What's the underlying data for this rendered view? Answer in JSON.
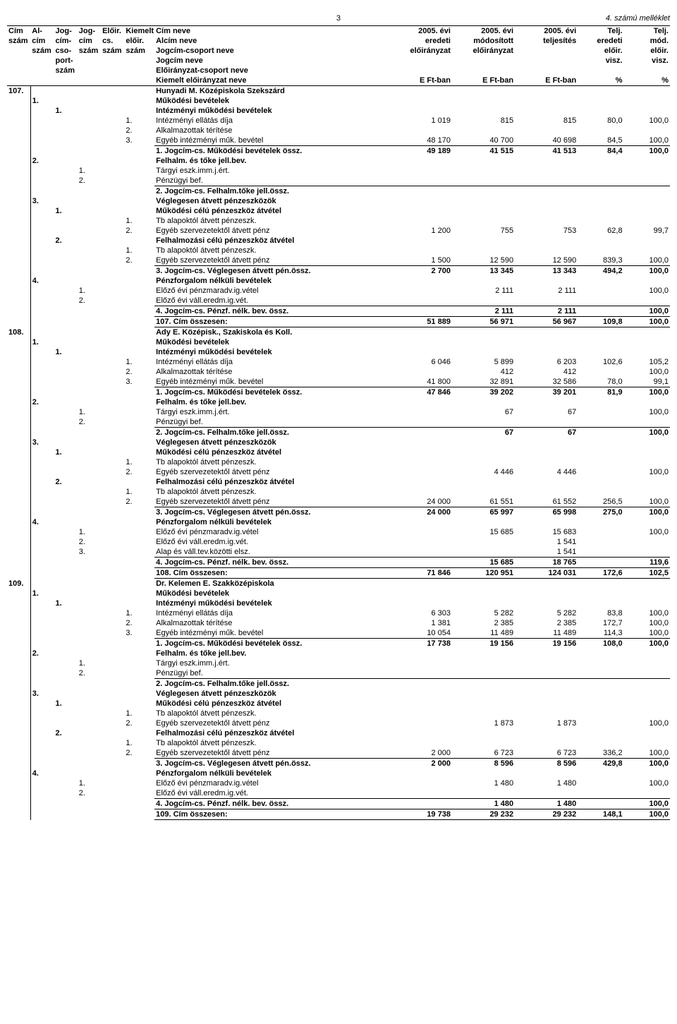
{
  "page": {
    "number": "3",
    "appendix": "4. számú melléklet"
  },
  "header": {
    "cim": "Cím szám",
    "alcim": "Al-cím szám",
    "jog": "Jog-cím-cso-port-szám",
    "jogcim": "Jog-cím szám",
    "eloir": "Előir. cs. szám",
    "kiemelt": "Kiemelt előir. szám",
    "nev1": "Cím neve",
    "nev2": "Alcím neve",
    "nev3": "Jogcím-csoport neve",
    "nev4": "Jogcím neve",
    "nev5": "Előirányzat-csoport neve",
    "nev6": "Kiemelt előirányzat neve",
    "c1a": "2005. évi",
    "c1b": "eredeti",
    "c1c": "előirányzat",
    "c2a": "2005. évi",
    "c2b": "módosított",
    "c2c": "előirányzat",
    "c3a": "2005. évi",
    "c3b": "teljesítés",
    "c4a": "Telj.",
    "c4b": "eredeti",
    "c4c": "előir.",
    "c4d": "visz.",
    "c5a": "Telj.",
    "c5b": "mód.",
    "c5c": "előir.",
    "c5d": "visz.",
    "unit": "E Ft-ban",
    "pct": "%"
  },
  "rows": [
    {
      "cim": "107.",
      "name": "Hunyadi M. Középiskola Szekszárd",
      "bold": true,
      "bt": true
    },
    {
      "alcim": "1.",
      "name": "Működési bevételek",
      "bold": true
    },
    {
      "jog": "1.",
      "name": "Intézményi működési bevételek",
      "bold": true
    },
    {
      "kiem": "1.",
      "name": "Intézményi ellátás díja",
      "v1": "1 019",
      "v2": "815",
      "v3": "815",
      "p1": "80,0",
      "p2": "100,0"
    },
    {
      "kiem": "2.",
      "name": "Alkalmazottak térítése"
    },
    {
      "kiem": "3.",
      "name": "Egyéb intézményi műk. bevétel",
      "v1": "48 170",
      "v2": "40 700",
      "v3": "40 698",
      "p1": "84,5",
      "p2": "100,0",
      "bb": true
    },
    {
      "name": "1. Jogcím-cs. Működési bevételek össz.",
      "bold": true,
      "v1": "49 189",
      "v2": "41 515",
      "v3": "41 513",
      "p1": "84,4",
      "p2": "100,0"
    },
    {
      "alcim": "2.",
      "name": "Felhalm. és tőke jell.bev.",
      "bold": true
    },
    {
      "jogcim": "1.",
      "name": "Tárgyi eszk.imm.j.ért."
    },
    {
      "jogcim": "2.",
      "name": "Pénzügyi bef.",
      "bb": true
    },
    {
      "name": "2. Jogcím-cs. Felhalm.tőke jell.össz.",
      "bold": true
    },
    {
      "alcim": "3.",
      "name": "Véglegesen átvett pénzeszközök",
      "bold": true
    },
    {
      "jog": "1.",
      "name": "Működési célú pénzeszköz átvétel",
      "bold": true
    },
    {
      "kiem": "1.",
      "name": "Tb alapoktól átvett pénzeszk."
    },
    {
      "kiem": "2.",
      "name": "Egyéb szervezetektől átvett pénz",
      "v1": "1 200",
      "v2": "755",
      "v3": "753",
      "p1": "62,8",
      "p2": "99,7"
    },
    {
      "jog": "2.",
      "name": "Felhalmozási célú  pénzeszköz átvétel",
      "bold": true
    },
    {
      "kiem": "1.",
      "name": "Tb alapoktól átvett pénzeszk."
    },
    {
      "kiem": "2.",
      "name": "Egyéb szervezetektől átvett pénz",
      "v1": "1 500",
      "v2": "12 590",
      "v3": "12 590",
      "p1": "839,3",
      "p2": "100,0",
      "bb": true
    },
    {
      "name": "3. Jogcím-cs. Véglegesen átvett pén.össz.",
      "bold": true,
      "v1": "2 700",
      "v2": "13 345",
      "v3": "13 343",
      "p1": "494,2",
      "p2": "100,0"
    },
    {
      "alcim": "4.",
      "name": "Pénzforgalom nélküli bevételek",
      "bold": true
    },
    {
      "jogcim": "1.",
      "name": "Előző évi pénzmaradv.ig.vétel",
      "v2": "2 111",
      "v3": "2 111",
      "p2": "100,0"
    },
    {
      "jogcim": "2.",
      "name": "Előző évi váll.eredm.ig.vét.",
      "bb": true
    },
    {
      "name": "4. Jogcím-cs. Pénzf. nélk. bev. össz.",
      "bold": true,
      "v2": "2 111",
      "v3": "2 111",
      "p2": "100,0",
      "bb": true
    },
    {
      "name": "107. Cím összesen:",
      "bold": true,
      "v1": "51 889",
      "v2": "56 971",
      "v3": "56 967",
      "p1": "109,8",
      "p2": "100,0",
      "bb": true
    },
    {
      "cim": "108.",
      "name": "Ady E. Középisk., Szakiskola és Koll.",
      "bold": true
    },
    {
      "alcim": "1.",
      "name": "Működési bevételek",
      "bold": true
    },
    {
      "jog": "1.",
      "name": "Intézményi működési bevételek",
      "bold": true
    },
    {
      "kiem": "1.",
      "name": "Intézményi ellátás díja",
      "v1": "6 046",
      "v2": "5 899",
      "v3": "6 203",
      "p1": "102,6",
      "p2": "105,2"
    },
    {
      "kiem": "2.",
      "name": "Alkalmazottak térítése",
      "v2": "412",
      "v3": "412",
      "p2": "100,0"
    },
    {
      "kiem": "3.",
      "name": "Egyéb intézményi műk. bevétel",
      "v1": "41 800",
      "v2": "32 891",
      "v3": "32 586",
      "p1": "78,0",
      "p2": "99,1",
      "bb": true
    },
    {
      "name": "1. Jogcím-cs. Működési bevételek össz.",
      "bold": true,
      "v1": "47 846",
      "v2": "39 202",
      "v3": "39 201",
      "p1": "81,9",
      "p2": "100,0"
    },
    {
      "alcim": "2.",
      "name": "Felhalm. és tőke jell.bev.",
      "bold": true
    },
    {
      "jogcim": "1.",
      "name": "Tárgyi eszk.imm.j.ért.",
      "v2": "67",
      "v3": "67",
      "p2": "100,0"
    },
    {
      "jogcim": "2.",
      "name": "Pénzügyi bef.",
      "bb": true
    },
    {
      "name": "2. Jogcím-cs. Felhalm.tőke jell.össz.",
      "bold": true,
      "v2": "67",
      "v3": "67",
      "p2": "100,0"
    },
    {
      "alcim": "3.",
      "name": "Véglegesen átvett pénzeszközök",
      "bold": true
    },
    {
      "jog": "1.",
      "name": "Működési célú pénzeszköz átvétel",
      "bold": true
    },
    {
      "kiem": "1.",
      "name": "Tb alapoktól átvett pénzeszk."
    },
    {
      "kiem": "2.",
      "name": "Egyéb szervezetektől átvett pénz",
      "v2": "4 446",
      "v3": "4 446",
      "p2": "100,0"
    },
    {
      "jog": "2.",
      "name": "Felhalmozási célú  pénzeszköz átvétel",
      "bold": true
    },
    {
      "kiem": "1.",
      "name": "Tb alapoktól átvett pénzeszk."
    },
    {
      "kiem": "2.",
      "name": "Egyéb szervezetektől átvett pénz",
      "v1": "24 000",
      "v2": "61 551",
      "v3": "61 552",
      "p1": "256,5",
      "p2": "100,0",
      "bb": true
    },
    {
      "name": "3. Jogcím-cs. Véglegesen átvett pén.össz.",
      "bold": true,
      "v1": "24 000",
      "v2": "65 997",
      "v3": "65 998",
      "p1": "275,0",
      "p2": "100,0"
    },
    {
      "alcim": "4.",
      "name": "Pénzforgalom nélküli bevételek",
      "bold": true
    },
    {
      "jogcim": "1.",
      "name": "Előző évi pénzmaradv.ig.vétel",
      "v2": "15 685",
      "v3": "15 683",
      "p2": "100,0"
    },
    {
      "jogcim": "2.",
      "name": "Előző évi váll.eredm.ig.vét.",
      "v3": "1 541"
    },
    {
      "jogcim": "3.",
      "name": "Alap és váll.tev.közötti elsz.",
      "v3": "1 541",
      "bb": true
    },
    {
      "name": "4. Jogcím-cs. Pénzf. nélk. bev. össz.",
      "bold": true,
      "v2": "15 685",
      "v3": "18 765",
      "p2": "119,6",
      "bb": true
    },
    {
      "name": "108. Cím összesen:",
      "bold": true,
      "v1": "71 846",
      "v2": "120 951",
      "v3": "124 031",
      "p1": "172,6",
      "p2": "102,5",
      "bb": true
    },
    {
      "cim": "109.",
      "name": "Dr. Kelemen E. Szakközépiskola",
      "bold": true
    },
    {
      "alcim": "1.",
      "name": "Működési bevételek",
      "bold": true
    },
    {
      "jog": "1.",
      "name": "Intézményi működési bevételek",
      "bold": true
    },
    {
      "kiem": "1.",
      "name": "Intézményi ellátás díja",
      "v1": "6 303",
      "v2": "5 282",
      "v3": "5 282",
      "p1": "83,8",
      "p2": "100,0"
    },
    {
      "kiem": "2.",
      "name": "Alkalmazottak térítése",
      "v1": "1 381",
      "v2": "2 385",
      "v3": "2 385",
      "p1": "172,7",
      "p2": "100,0"
    },
    {
      "kiem": "3.",
      "name": "Egyéb intézményi műk. bevétel",
      "v1": "10 054",
      "v2": "11 489",
      "v3": "11 489",
      "p1": "114,3",
      "p2": "100,0",
      "bb": true
    },
    {
      "name": "1. Jogcím-cs. Működési bevételek össz.",
      "bold": true,
      "v1": "17 738",
      "v2": "19 156",
      "v3": "19 156",
      "p1": "108,0",
      "p2": "100,0"
    },
    {
      "alcim": "2.",
      "name": "Felhalm. és tőke jell.bev.",
      "bold": true
    },
    {
      "jogcim": "1.",
      "name": "Tárgyi eszk.imm.j.ért."
    },
    {
      "jogcim": "2.",
      "name": "Pénzügyi bef.",
      "bb": true
    },
    {
      "name": "2. Jogcím-cs. Felhalm.tőke jell.össz.",
      "bold": true
    },
    {
      "alcim": "3.",
      "name": "Véglegesen átvett pénzeszközök",
      "bold": true
    },
    {
      "jog": "1.",
      "name": "Működési célú pénzeszköz átvétel",
      "bold": true
    },
    {
      "kiem": "1.",
      "name": "Tb alapoktól átvett pénzeszk."
    },
    {
      "kiem": "2.",
      "name": "Egyéb szervezetektől átvett pénz",
      "v2": "1 873",
      "v3": "1 873",
      "p2": "100,0"
    },
    {
      "jog": "2.",
      "name": "Felhalmozási célú  pénzeszköz átvétel",
      "bold": true
    },
    {
      "kiem": "1.",
      "name": "Tb alapoktól átvett pénzeszk."
    },
    {
      "kiem": "2.",
      "name": "Egyéb szervezetektől átvett pénz",
      "v1": "2 000",
      "v2": "6 723",
      "v3": "6 723",
      "p1": "336,2",
      "p2": "100,0",
      "bb": true
    },
    {
      "name": "3. Jogcím-cs. Véglegesen átvett pén.össz.",
      "bold": true,
      "v1": "2 000",
      "v2": "8 596",
      "v3": "8 596",
      "p1": "429,8",
      "p2": "100,0"
    },
    {
      "alcim": "4.",
      "name": "Pénzforgalom nélküli bevételek",
      "bold": true
    },
    {
      "jogcim": "1.",
      "name": "Előző évi pénzmaradv.ig.vétel",
      "v2": "1 480",
      "v3": "1 480",
      "p2": "100,0"
    },
    {
      "jogcim": "2.",
      "name": "Előző évi váll.eredm.ig.vét.",
      "bb": true
    },
    {
      "name": "4. Jogcím-cs. Pénzf. nélk. bev. össz.",
      "bold": true,
      "v2": "1 480",
      "v3": "1 480",
      "p2": "100,0",
      "bb": true
    },
    {
      "name": "109. Cím összesen:",
      "bold": true,
      "v1": "19 738",
      "v2": "29 232",
      "v3": "29 232",
      "p1": "148,1",
      "p2": "100,0",
      "bb": true
    }
  ]
}
